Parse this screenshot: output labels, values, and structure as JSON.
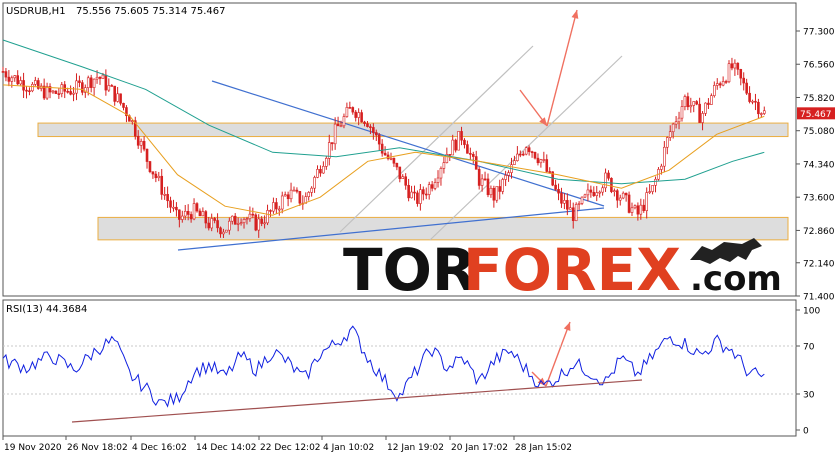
{
  "header": {
    "symbol": "USDRUB,H1",
    "ohlc": "75.556 75.605 75.314 75.467"
  },
  "rsi_header": "RSI(13) 44.3684",
  "watermark": {
    "tor": "TOR",
    "forex": "FOREX",
    "dotcom": ".com"
  },
  "colors": {
    "candle": "#d62020",
    "ma_fast": "#e8a020",
    "ma_slow": "#20a090",
    "trend": "#4070d0",
    "channel": "#c0c0c0",
    "arrow": "#f07060",
    "zone_fill": "#d8d8d8",
    "zone_border": "#e8a020",
    "rsi": "#1020e0",
    "rsi_trend": "#a05050",
    "current_price_bg": "#d62020"
  },
  "chart_data": [
    {
      "type": "candlestick",
      "title": "USDRUB,H1",
      "x_tick_labels": [
        "19 Nov 2020",
        "26 Nov 18:02",
        "4 Dec 16:02",
        "14 Dec 14:02",
        "22 Dec 12:02",
        "4 Jan 10:02",
        "12 Jan 19:02",
        "20 Jan 17:02",
        "28 Jan 15:02"
      ],
      "y_tick_labels": [
        "77.300",
        "76.560",
        "75.820",
        "75.080",
        "74.340",
        "73.600",
        "72.860",
        "72.140",
        "71.400"
      ],
      "ylim": [
        71.4,
        77.7
      ],
      "current_price": "75.467",
      "close_path": [
        [
          0,
          76.4
        ],
        [
          0.03,
          76.1
        ],
        [
          0.06,
          75.9
        ],
        [
          0.09,
          76.0
        ],
        [
          0.12,
          76.3
        ],
        [
          0.14,
          75.9
        ],
        [
          0.16,
          75.4
        ],
        [
          0.18,
          74.5
        ],
        [
          0.2,
          73.8
        ],
        [
          0.22,
          73.1
        ],
        [
          0.24,
          73.3
        ],
        [
          0.26,
          73.0
        ],
        [
          0.28,
          72.9
        ],
        [
          0.3,
          73.2
        ],
        [
          0.32,
          73.0
        ],
        [
          0.34,
          73.3
        ],
        [
          0.36,
          73.7
        ],
        [
          0.38,
          73.5
        ],
        [
          0.4,
          74.3
        ],
        [
          0.42,
          75.1
        ],
        [
          0.44,
          75.6
        ],
        [
          0.46,
          75.3
        ],
        [
          0.48,
          74.6
        ],
        [
          0.5,
          74.1
        ],
        [
          0.52,
          73.5
        ],
        [
          0.54,
          73.9
        ],
        [
          0.56,
          74.6
        ],
        [
          0.58,
          75.0
        ],
        [
          0.6,
          74.0
        ],
        [
          0.62,
          73.6
        ],
        [
          0.64,
          74.2
        ],
        [
          0.66,
          74.8
        ],
        [
          0.68,
          74.4
        ],
        [
          0.7,
          73.6
        ],
        [
          0.72,
          73.2
        ],
        [
          0.74,
          73.7
        ],
        [
          0.76,
          74.0
        ],
        [
          0.78,
          73.6
        ],
        [
          0.8,
          73.2
        ],
        [
          0.82,
          73.8
        ],
        [
          0.84,
          75.0
        ],
        [
          0.86,
          75.8
        ],
        [
          0.88,
          75.4
        ],
        [
          0.9,
          76.1
        ],
        [
          0.92,
          76.5
        ],
        [
          0.94,
          75.9
        ],
        [
          0.96,
          75.47
        ]
      ],
      "ma_fast_path": [
        [
          0,
          76.1
        ],
        [
          0.1,
          76.0
        ],
        [
          0.16,
          75.4
        ],
        [
          0.22,
          74.1
        ],
        [
          0.28,
          73.4
        ],
        [
          0.34,
          73.2
        ],
        [
          0.4,
          73.6
        ],
        [
          0.46,
          74.4
        ],
        [
          0.52,
          74.6
        ],
        [
          0.6,
          74.4
        ],
        [
          0.7,
          74.1
        ],
        [
          0.78,
          73.8
        ],
        [
          0.84,
          74.2
        ],
        [
          0.9,
          75.0
        ],
        [
          0.96,
          75.4
        ]
      ],
      "ma_slow_path": [
        [
          0,
          77.1
        ],
        [
          0.1,
          76.5
        ],
        [
          0.18,
          76.0
        ],
        [
          0.26,
          75.2
        ],
        [
          0.34,
          74.6
        ],
        [
          0.42,
          74.5
        ],
        [
          0.5,
          74.7
        ],
        [
          0.6,
          74.4
        ],
        [
          0.7,
          74.0
        ],
        [
          0.78,
          73.9
        ],
        [
          0.86,
          74.0
        ],
        [
          0.92,
          74.4
        ],
        [
          0.96,
          74.6
        ]
      ],
      "resistance_zone": [
        74.95,
        75.25
      ],
      "support_zone": [
        72.65,
        73.15
      ]
    },
    {
      "type": "line",
      "title": "RSI(13) 44.3684",
      "y_tick_labels": [
        "100",
        "70",
        "30",
        "0"
      ],
      "ylim": [
        0,
        100
      ],
      "rsi_path": [
        [
          0,
          58
        ],
        [
          0.03,
          52
        ],
        [
          0.06,
          62
        ],
        [
          0.09,
          50
        ],
        [
          0.12,
          68
        ],
        [
          0.14,
          75
        ],
        [
          0.16,
          46
        ],
        [
          0.18,
          35
        ],
        [
          0.2,
          22
        ],
        [
          0.22,
          26
        ],
        [
          0.24,
          48
        ],
        [
          0.26,
          54
        ],
        [
          0.28,
          44
        ],
        [
          0.3,
          62
        ],
        [
          0.32,
          50
        ],
        [
          0.34,
          66
        ],
        [
          0.36,
          56
        ],
        [
          0.38,
          42
        ],
        [
          0.4,
          64
        ],
        [
          0.42,
          72
        ],
        [
          0.44,
          84
        ],
        [
          0.46,
          60
        ],
        [
          0.48,
          42
        ],
        [
          0.5,
          28
        ],
        [
          0.52,
          48
        ],
        [
          0.54,
          68
        ],
        [
          0.56,
          52
        ],
        [
          0.58,
          60
        ],
        [
          0.6,
          40
        ],
        [
          0.62,
          58
        ],
        [
          0.64,
          66
        ],
        [
          0.66,
          50
        ],
        [
          0.68,
          36
        ],
        [
          0.7,
          44
        ],
        [
          0.72,
          56
        ],
        [
          0.74,
          48
        ],
        [
          0.76,
          40
        ],
        [
          0.78,
          60
        ],
        [
          0.8,
          46
        ],
        [
          0.82,
          62
        ],
        [
          0.84,
          78
        ],
        [
          0.86,
          72
        ],
        [
          0.88,
          62
        ],
        [
          0.9,
          74
        ],
        [
          0.92,
          66
        ],
        [
          0.94,
          48
        ],
        [
          0.96,
          44
        ]
      ]
    }
  ]
}
